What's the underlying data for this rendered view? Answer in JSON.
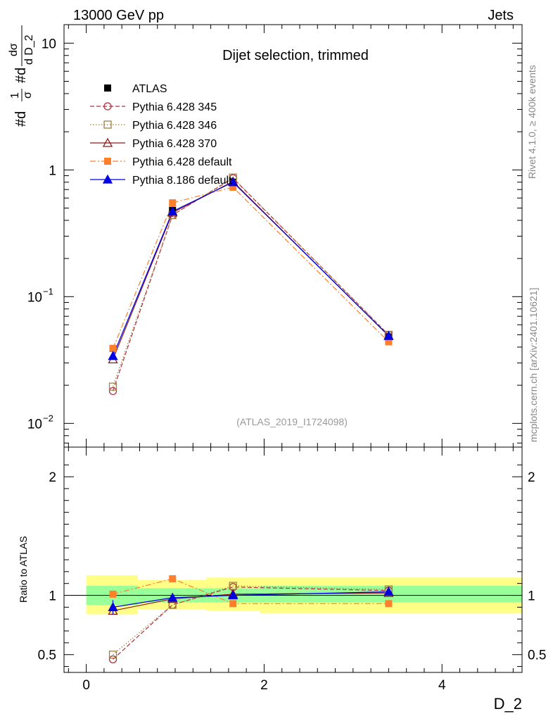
{
  "header": {
    "left": "13000 GeV pp",
    "right": "Jets"
  },
  "side_labels": {
    "rivet": "Rivet 4.1.0, ≥ 400k events",
    "mcplots": "mcplots.cern.ch [arXiv:2401.10621]"
  },
  "chart_data": {
    "type": "line",
    "title": "Dijet selection, trimmed",
    "analysis_id": "(ATLAS_2019_I1724098)",
    "xlabel": "D_2",
    "ylabel": "#d¹⁄σ #d dσ⁄d D_2",
    "ylabel_parts": {
      "prefix1": "#d",
      "frac1_num": "1",
      "frac1_den": "σ",
      "prefix2": "#d",
      "frac2_num": "dσ",
      "frac2_den": "d D_2"
    },
    "ratio_ylabel": "Ratio to ATLAS",
    "xlim": [
      -0.25,
      4.9
    ],
    "ylim_main": [
      0.0065,
      14
    ],
    "ylim_ratio": [
      0.35,
      2.25
    ],
    "x_ticks": [
      "0",
      "2",
      "4"
    ],
    "x_tick_values": [
      0,
      2,
      4
    ],
    "y_ticks_main": [
      {
        "value": 10,
        "base": "10",
        "exp": ""
      },
      {
        "value": 1,
        "base": "1",
        "exp": ""
      },
      {
        "value": 0.1,
        "base": "10",
        "exp": "−1"
      },
      {
        "value": 0.01,
        "base": "10",
        "exp": "−2"
      }
    ],
    "y_ticks_ratio": [
      "0.5",
      "1",
      "2"
    ],
    "y_tick_values_ratio": [
      0.5,
      1,
      2
    ],
    "x_bins": [
      [
        0,
        0.58
      ],
      [
        0.58,
        1.35
      ],
      [
        1.35,
        1.95
      ],
      [
        1.95,
        4.9
      ]
    ],
    "x": [
      0.3,
      0.97,
      1.65,
      3.4
    ],
    "band_inner": [
      [
        0.92,
        1.08
      ],
      [
        0.94,
        1.06
      ],
      [
        0.94,
        1.06
      ],
      [
        0.94,
        1.08
      ]
    ],
    "band_outer": [
      [
        0.84,
        1.17
      ],
      [
        0.88,
        1.13
      ],
      [
        0.87,
        1.15
      ],
      [
        0.85,
        1.15
      ]
    ],
    "legend_position": "top-left",
    "series": [
      {
        "name": "ATLAS",
        "values": [
          0.039,
          0.48,
          0.8,
          0.048
        ],
        "ratio": [
          1,
          1,
          1,
          1
        ],
        "color": "#000000",
        "marker": "square-filled",
        "dash": ""
      },
      {
        "name": "Pythia 6.428 345",
        "values": [
          0.018,
          0.44,
          0.86,
          0.05
        ],
        "ratio": [
          0.46,
          0.92,
          1.07,
          1.04
        ],
        "color": "#b03040",
        "marker": "circle-open",
        "dash": "6,3"
      },
      {
        "name": "Pythia 6.428 346",
        "values": [
          0.0195,
          0.44,
          0.87,
          0.05
        ],
        "ratio": [
          0.5,
          0.92,
          1.08,
          1.05
        ],
        "color": "#a08040",
        "marker": "square-open",
        "dash": "1.5,2.5"
      },
      {
        "name": "Pythia 6.428 370",
        "values": [
          0.032,
          0.46,
          0.81,
          0.049
        ],
        "ratio": [
          0.87,
          0.97,
          1.01,
          1.02
        ],
        "color": "#8b1a1a",
        "marker": "triangle-open",
        "dash": ""
      },
      {
        "name": "Pythia 6.428 default",
        "values": [
          0.039,
          0.55,
          0.73,
          0.044
        ],
        "ratio": [
          1.01,
          1.14,
          0.93,
          0.93
        ],
        "color": "#ff7f2a",
        "marker": "square-filled",
        "dash": "8,3,2,3"
      },
      {
        "name": "Pythia 8.186 default",
        "values": [
          0.034,
          0.47,
          0.8,
          0.049
        ],
        "ratio": [
          0.9,
          0.98,
          1.0,
          1.03
        ],
        "color": "#0000e0",
        "marker": "triangle-filled",
        "dash": ""
      }
    ]
  }
}
